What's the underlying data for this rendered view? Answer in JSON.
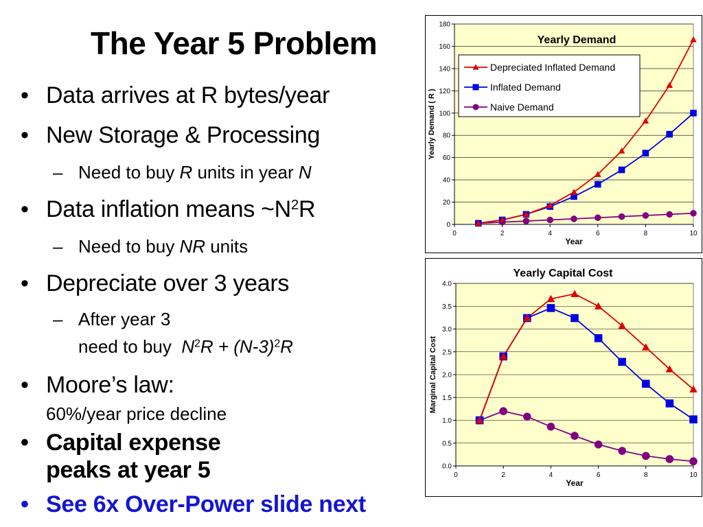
{
  "slide": {
    "title": "The Year 5 Problem",
    "bullets": {
      "b1": "Data arrives at R bytes/year",
      "b2": "New Storage & Processing",
      "b2_sub": {
        "pre": "Need to buy ",
        "r": "R",
        "mid": " units in year ",
        "n": "N"
      },
      "b3": {
        "pre": "Data inflation means ~N",
        "sup": "2",
        "post": "R"
      },
      "b3_sub": {
        "pre": "Need to buy ",
        "nr": "NR",
        "post": " units"
      },
      "b4": "Depreciate over 3 years",
      "b4_sub": {
        "line1": "After year 3",
        "line2_pre": "need to buy",
        "n": "N",
        "sup1": "2",
        "r_plus": "R + (N-3)",
        "sup2": "2",
        "r_end": "R"
      },
      "b5": "Moore’s law:",
      "b5_line2": "60%/year price decline",
      "b6_line1": "Capital expense",
      "b6_line2": "peaks at year 5",
      "b7": "See 6x Over-Power slide next"
    },
    "bullet_symbol": "•",
    "dash_symbol": "–"
  },
  "chart_data": [
    {
      "type": "line",
      "title": "Yearly Demand",
      "xlabel": "Year",
      "ylabel": "Yearly Demand ( R )",
      "xlim": [
        0,
        10
      ],
      "ylim": [
        0,
        180
      ],
      "xticks": [
        "0",
        "2",
        "4",
        "6",
        "8",
        "10"
      ],
      "yticks": [
        "0",
        "20",
        "40",
        "60",
        "80",
        "100",
        "120",
        "140",
        "160",
        "180"
      ],
      "grid": true,
      "legend_position": "upper-left",
      "plot_background": "#ffffcc",
      "x": [
        1,
        2,
        3,
        4,
        5,
        6,
        7,
        8,
        9,
        10
      ],
      "series": [
        {
          "name": "Depreciated Inflated Demand",
          "color": "#e00000",
          "marker": "triangle",
          "values": [
            1,
            4,
            9,
            17,
            29,
            45,
            66,
            93,
            125,
            166
          ]
        },
        {
          "name": "Inflated Demand",
          "color": "#0000e0",
          "marker": "square",
          "values": [
            1,
            4,
            9,
            16,
            25,
            36,
            49,
            64,
            81,
            100
          ]
        },
        {
          "name": "Naive Demand",
          "color": "#800080",
          "marker": "circle",
          "values": [
            1,
            2,
            3,
            4,
            5,
            6,
            7,
            8,
            9,
            10
          ]
        }
      ]
    },
    {
      "type": "line",
      "title": "Yearly Capital Cost",
      "xlabel": "Year",
      "ylabel": "Marginal Capital Cost",
      "xlim": [
        0,
        10
      ],
      "ylim": [
        0,
        4
      ],
      "xticks": [
        "0",
        "2",
        "4",
        "6",
        "8",
        "10"
      ],
      "yticks": [
        "0.0",
        "0.5",
        "1.0",
        "1.5",
        "2.0",
        "2.5",
        "3.0",
        "3.5",
        "4.0"
      ],
      "grid": true,
      "plot_background": "#ffffcc",
      "x": [
        1,
        2,
        3,
        4,
        5,
        6,
        7,
        8,
        9,
        10
      ],
      "series": [
        {
          "name": "Depreciated Inflated Demand",
          "color": "#e00000",
          "marker": "triangle",
          "values": [
            1.0,
            2.4,
            3.24,
            3.66,
            3.77,
            3.5,
            3.07,
            2.6,
            2.12,
            1.68
          ]
        },
        {
          "name": "Inflated Demand",
          "color": "#0000e0",
          "marker": "square",
          "values": [
            1.0,
            2.4,
            3.24,
            3.46,
            3.24,
            2.8,
            2.28,
            1.8,
            1.37,
            1.02
          ]
        },
        {
          "name": "Naive Demand",
          "color": "#800080",
          "marker": "circle",
          "values": [
            1.0,
            1.2,
            1.08,
            0.86,
            0.66,
            0.47,
            0.33,
            0.22,
            0.15,
            0.1
          ]
        }
      ]
    }
  ]
}
